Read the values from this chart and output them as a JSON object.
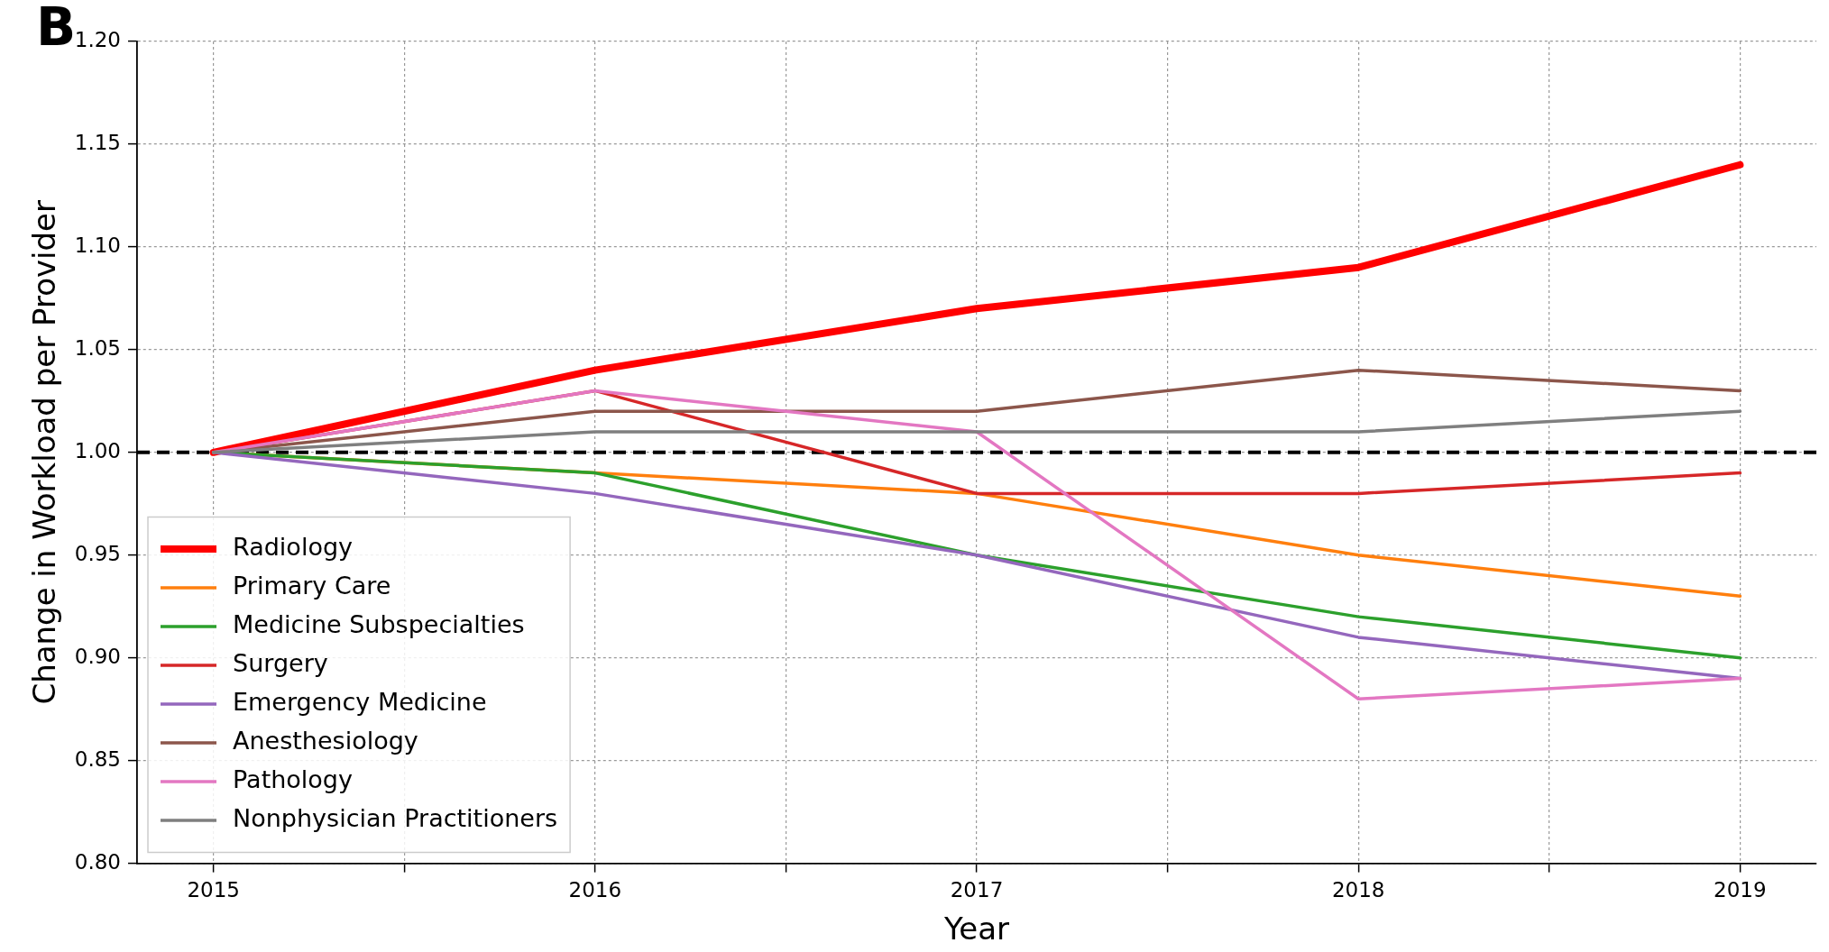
{
  "chart_data": {
    "type": "line",
    "xlabel": "Year",
    "ylabel": "Change in Workload per Provider",
    "annotations": [
      "B"
    ],
    "x": [
      2015,
      2016,
      2017,
      2018,
      2019
    ],
    "series": [
      {
        "name": "Radiology",
        "color": "#ff0000",
        "values": [
          1.0,
          1.04,
          1.07,
          1.09,
          1.14
        ]
      },
      {
        "name": "Primary Care",
        "color": "#ff7f0e",
        "values": [
          1.0,
          0.99,
          0.98,
          0.95,
          0.93
        ]
      },
      {
        "name": "Medicine Subspecialties",
        "color": "#2ca02c",
        "values": [
          1.0,
          0.99,
          0.95,
          0.92,
          0.9
        ]
      },
      {
        "name": "Surgery",
        "color": "#d62728",
        "values": [
          1.0,
          1.03,
          0.98,
          0.98,
          0.99
        ]
      },
      {
        "name": "Emergency Medicine",
        "color": "#9467bd",
        "values": [
          1.0,
          0.98,
          0.95,
          0.91,
          0.89
        ]
      },
      {
        "name": "Anesthesiology",
        "color": "#8c564b",
        "values": [
          1.0,
          1.02,
          1.02,
          1.04,
          1.03
        ]
      },
      {
        "name": "Pathology",
        "color": "#e377c2",
        "values": [
          1.0,
          1.03,
          1.01,
          0.88,
          0.89
        ]
      },
      {
        "name": "Nonphysician Practitioners",
        "color": "#7f7f7f",
        "values": [
          1.0,
          1.01,
          1.01,
          1.01,
          1.02
        ]
      }
    ],
    "xlim": [
      2014.8,
      2019.2
    ],
    "xticks": [
      2015,
      {
        "value": 2015.5,
        "label": null
      },
      2016,
      {
        "value": 2016.5,
        "label": null
      },
      2017,
      {
        "value": 2017.5,
        "label": null
      },
      2018,
      {
        "value": 2018.5,
        "label": null
      },
      2019
    ],
    "ylim": [
      0.8,
      1.2
    ],
    "yticks": [
      {
        "value": 0.8,
        "label": "0.80"
      },
      {
        "value": 0.85,
        "label": "0.85"
      },
      {
        "value": 0.9,
        "label": "0.90"
      },
      {
        "value": 0.95,
        "label": "0.95"
      },
      {
        "value": 1.0,
        "label": "1.00"
      },
      {
        "value": 1.05,
        "label": "1.05"
      },
      {
        "value": 1.1,
        "label": "1.10"
      },
      {
        "value": 1.15,
        "label": "1.15"
      },
      {
        "value": 1.2,
        "label": "1.20"
      }
    ],
    "ref_lines": [
      {
        "axis": "y",
        "value": 1.0,
        "color": "#000000",
        "line_style": "dashed"
      }
    ],
    "grid": true,
    "legend": "bottom left",
    "marker": "none",
    "line_style": "solid"
  }
}
